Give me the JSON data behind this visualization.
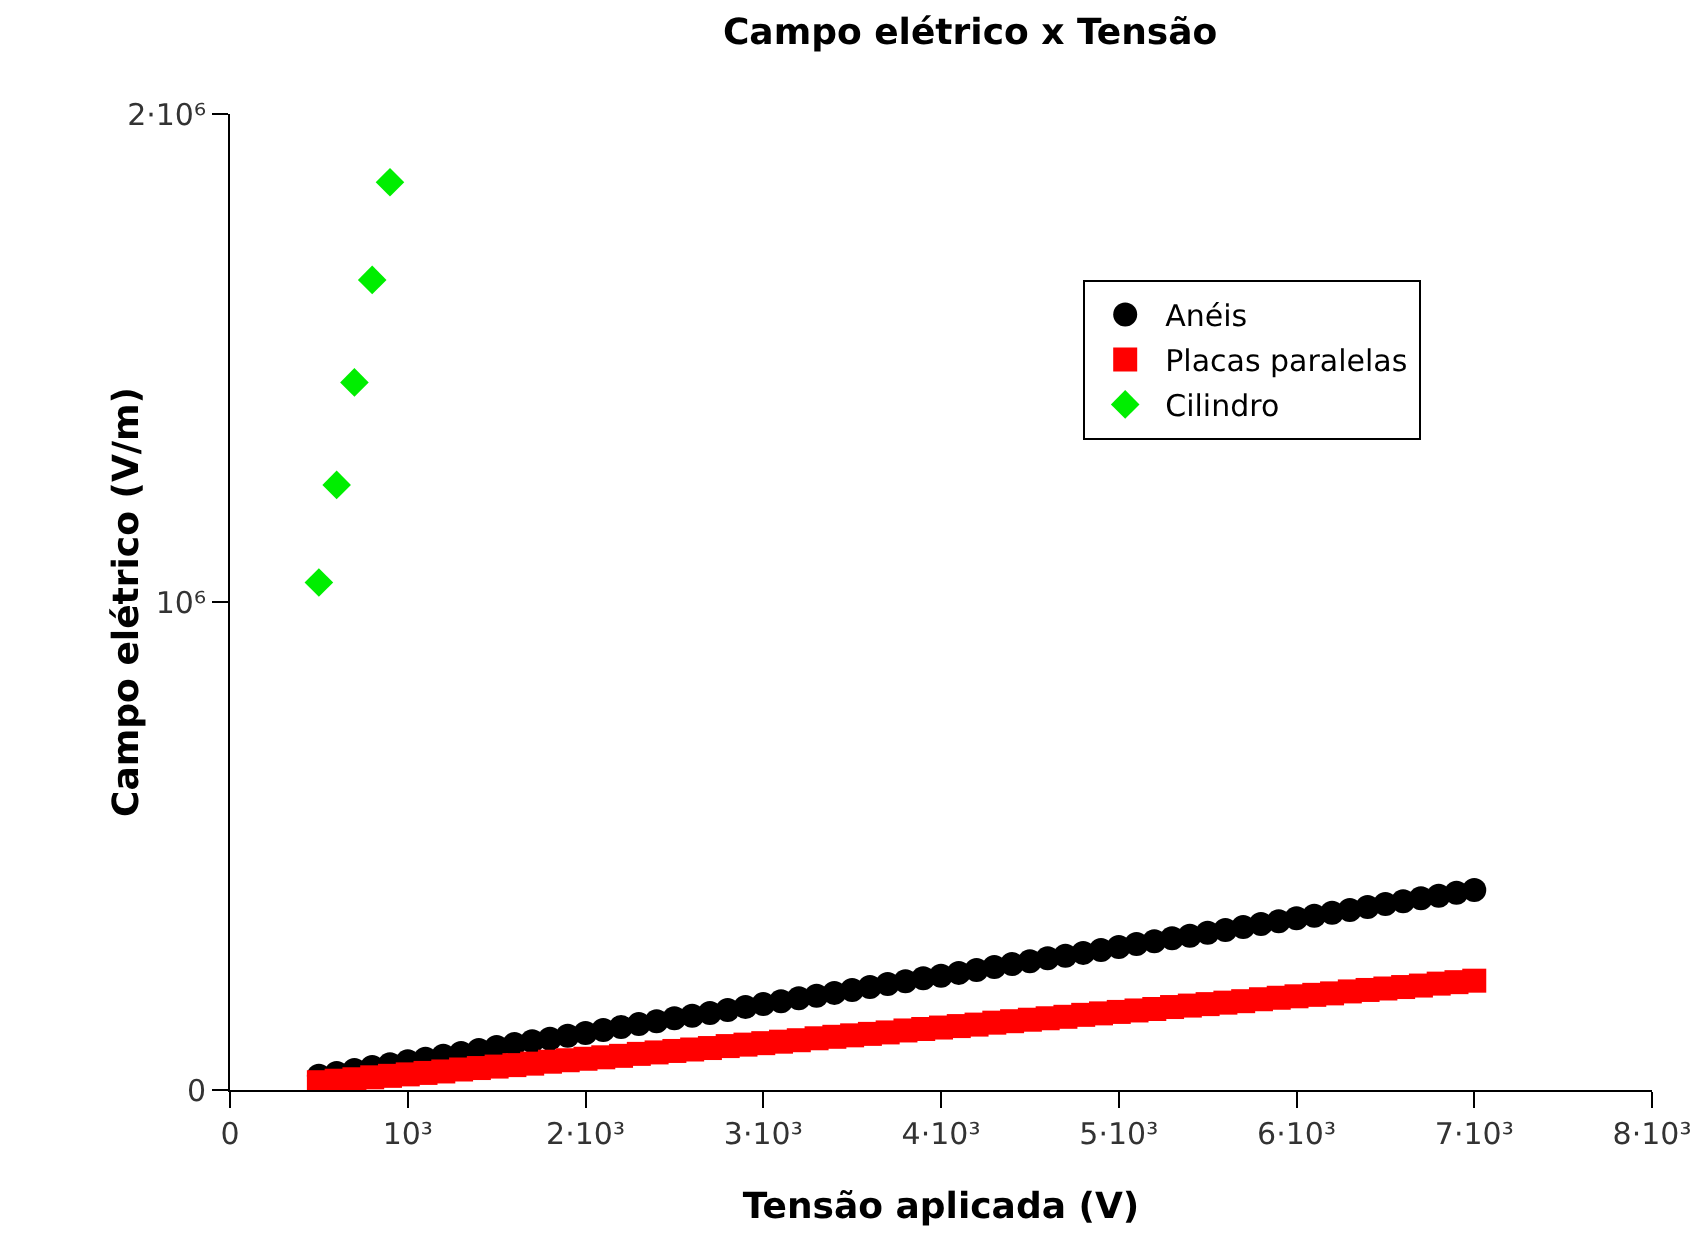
{
  "chart_data": {
    "type": "scatter",
    "title": "Campo elétrico x Tensão",
    "xlabel": "Tensão aplicada (V)",
    "ylabel": "Campo elétrico (V/m)",
    "xlim": [
      0,
      8000
    ],
    "ylim": [
      0,
      2000000
    ],
    "xticks": [
      0,
      {
        "value": 1000,
        "label": "10³"
      },
      {
        "value": 2000,
        "label": "2·10³"
      },
      {
        "value": 3000,
        "label": "3·10³"
      },
      {
        "value": 4000,
        "label": "4·10³"
      },
      {
        "value": 5000,
        "label": "5·10³"
      },
      {
        "value": 6000,
        "label": "6·10³"
      },
      {
        "value": 7000,
        "label": "7·10³"
      },
      {
        "value": 8000,
        "label": "8·10³"
      }
    ],
    "yticks": [
      0,
      {
        "value": 1000000,
        "label": "10⁶"
      },
      {
        "value": 2000000,
        "label": "2·10⁶"
      }
    ],
    "grid": false,
    "legend": "top right",
    "series": [
      {
        "name": "Anéis",
        "color": "#000000",
        "marker": "circle",
        "x": [
          500,
          600,
          700,
          800,
          900,
          1000,
          1100,
          1200,
          1300,
          1400,
          1500,
          1600,
          1700,
          1800,
          1900,
          2000,
          2100,
          2200,
          2300,
          2400,
          2500,
          2600,
          2700,
          2800,
          2900,
          3000,
          3100,
          3200,
          3300,
          3400,
          3500,
          3600,
          3700,
          3800,
          3900,
          4000,
          4100,
          4200,
          4300,
          4400,
          4500,
          4600,
          4700,
          4800,
          4900,
          5000,
          5100,
          5200,
          5300,
          5400,
          5500,
          5600,
          5700,
          5800,
          5900,
          6000,
          6100,
          6200,
          6300,
          6400,
          6500,
          6600,
          6700,
          6800,
          6900,
          7000
        ],
        "values": [
          29000,
          35000,
          41000,
          47000,
          53000,
          59000,
          64000,
          70000,
          76000,
          82000,
          88000,
          94000,
          100000,
          105000,
          111000,
          117000,
          123000,
          129000,
          135000,
          141000,
          147000,
          152000,
          158000,
          164000,
          170000,
          176000,
          182000,
          188000,
          193000,
          199000,
          205000,
          211000,
          217000,
          223000,
          229000,
          234000,
          240000,
          246000,
          252000,
          258000,
          264000,
          270000,
          275000,
          281000,
          287000,
          293000,
          299000,
          305000,
          311000,
          316000,
          322000,
          328000,
          334000,
          340000,
          346000,
          352000,
          357000,
          363000,
          369000,
          375000,
          381000,
          387000,
          393000,
          398000,
          404000,
          410000
        ]
      },
      {
        "name": "Placas paralelas",
        "color": "#ff0000",
        "marker": "square",
        "x": [
          500,
          600,
          700,
          800,
          900,
          1000,
          1100,
          1200,
          1300,
          1400,
          1500,
          1600,
          1700,
          1800,
          1900,
          2000,
          2100,
          2200,
          2300,
          2400,
          2500,
          2600,
          2700,
          2800,
          2900,
          3000,
          3100,
          3200,
          3300,
          3400,
          3500,
          3600,
          3700,
          3800,
          3900,
          4000,
          4100,
          4200,
          4300,
          4400,
          4500,
          4600,
          4700,
          4800,
          4900,
          5000,
          5100,
          5200,
          5300,
          5400,
          5500,
          5600,
          5700,
          5800,
          5900,
          6000,
          6100,
          6200,
          6300,
          6400,
          6500,
          6600,
          6700,
          6800,
          6900,
          7000
        ],
        "values": [
          16000,
          19000,
          22000,
          26000,
          29000,
          32000,
          35000,
          38000,
          42000,
          45000,
          48000,
          51000,
          54000,
          58000,
          61000,
          64000,
          67000,
          70000,
          74000,
          77000,
          80000,
          83000,
          86000,
          90000,
          93000,
          96000,
          99000,
          102000,
          106000,
          109000,
          112000,
          115000,
          118000,
          122000,
          125000,
          128000,
          131000,
          134000,
          138000,
          141000,
          144000,
          147000,
          150000,
          154000,
          157000,
          160000,
          163000,
          166000,
          170000,
          173000,
          176000,
          179000,
          182000,
          186000,
          189000,
          192000,
          195000,
          198000,
          202000,
          205000,
          208000,
          211000,
          214000,
          218000,
          221000,
          224000
        ]
      },
      {
        "name": "Cilindro",
        "color": "#00ee00",
        "marker": "diamond",
        "x": [
          500,
          600,
          700,
          800,
          900
        ],
        "values": [
          1040000,
          1240000,
          1450000,
          1660000,
          1860000
        ]
      }
    ]
  }
}
